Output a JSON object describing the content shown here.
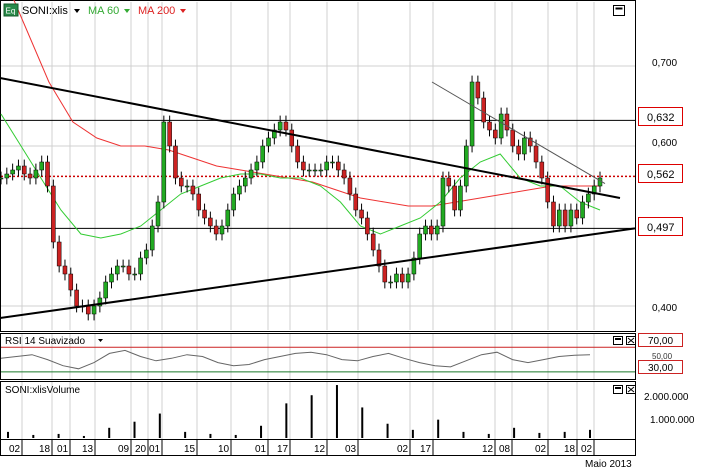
{
  "price_panel": {
    "symbol": "SONI:xlis",
    "symbol_icon": "eq-icon",
    "symbol_icon_text": "Eq",
    "ma60_label": "MA 60",
    "ma200_label": "MA 200",
    "price_ticks": [
      "0,700",
      "0,600",
      "0,400"
    ],
    "level_labels": [
      "0,632",
      "0,562",
      "0,497"
    ]
  },
  "rsi_panel": {
    "label": "RSI 14 Suavizado",
    "ticks": [
      "70,00",
      "50,00",
      "30,00"
    ]
  },
  "volume_panel": {
    "label": "SONI:xlisVolume",
    "ticks": [
      "2.000.000",
      "1.000.000"
    ]
  },
  "x_axis": {
    "ticks": [
      "02",
      "18",
      "01",
      "13",
      "09",
      "20",
      "01",
      "15",
      "10",
      "01",
      "17",
      "12",
      "03",
      "02",
      "17",
      "12",
      "08",
      "02",
      "18",
      "02"
    ],
    "month_label": "Maio 2013"
  },
  "colors": {
    "price_up": "#22aa22",
    "price_down": "#cc2222",
    "ma60": "#33cc33",
    "ma200": "#ee3333",
    "trendline": "#000000",
    "resistance_label": "#dd0000",
    "rsi_band": "#cc2222",
    "volume": "#000000"
  },
  "chart_data": [
    {
      "type": "line",
      "title": "SONI:xlis",
      "series": [
        {
          "name": "SONI:xlis",
          "values": [
            0.56,
            0.565,
            0.57,
            0.575,
            0.565,
            0.56,
            0.57,
            0.58,
            0.55,
            0.48,
            0.45,
            0.44,
            0.42,
            0.4,
            0.4,
            0.39,
            0.4,
            0.41,
            0.43,
            0.44,
            0.45,
            0.45,
            0.44,
            0.44,
            0.46,
            0.47,
            0.5,
            0.53,
            0.63,
            0.6,
            0.56,
            0.55,
            0.55,
            0.54,
            0.52,
            0.51,
            0.5,
            0.49,
            0.5,
            0.52,
            0.54,
            0.55,
            0.56,
            0.57,
            0.58,
            0.6,
            0.61,
            0.62,
            0.63,
            0.62,
            0.6,
            0.58,
            0.57,
            0.57,
            0.57,
            0.57,
            0.58,
            0.58,
            0.57,
            0.56,
            0.54,
            0.52,
            0.51,
            0.49,
            0.47,
            0.45,
            0.43,
            0.43,
            0.44,
            0.43,
            0.44,
            0.46,
            0.49,
            0.5,
            0.49,
            0.5,
            0.56,
            0.55,
            0.52,
            0.55,
            0.6,
            0.68,
            0.66,
            0.63,
            0.62,
            0.61,
            0.64,
            0.62,
            0.6,
            0.59,
            0.61,
            0.6,
            0.58,
            0.56,
            0.53,
            0.5,
            0.52,
            0.5,
            0.52,
            0.51,
            0.53,
            0.54,
            0.55,
            0.56
          ]
        },
        {
          "name": "MA 60",
          "values": [
            0.64,
            0.6,
            0.56,
            0.52,
            0.49,
            0.485,
            0.49,
            0.5,
            0.52,
            0.54,
            0.55,
            0.56,
            0.565,
            0.565,
            0.56,
            0.56,
            0.55,
            0.53,
            0.5,
            0.49,
            0.5,
            0.51,
            0.53,
            0.56,
            0.58,
            0.59,
            0.56,
            0.55,
            0.55,
            0.53,
            0.52
          ]
        },
        {
          "name": "MA 200",
          "values": [
            0.82,
            0.75,
            0.68,
            0.63,
            0.61,
            0.6,
            0.6,
            0.595,
            0.585,
            0.575,
            0.57,
            0.565,
            0.56,
            0.555,
            0.545,
            0.535,
            0.53,
            0.525,
            0.525,
            0.53,
            0.535,
            0.54,
            0.545,
            0.55,
            0.55,
            0.55
          ]
        }
      ],
      "lines": [
        {
          "type": "horizontal",
          "value": 0.632
        },
        {
          "type": "horizontal",
          "value": 0.562
        },
        {
          "type": "horizontal",
          "value": 0.497
        }
      ],
      "yticks": [
        0.7,
        0.6,
        0.4
      ]
    },
    {
      "type": "line",
      "title": "RSI 14 Suavizado",
      "series": [
        {
          "name": "RSI 14 Suavizado",
          "values": [
            52,
            55,
            58,
            50,
            40,
            35,
            45,
            60,
            65,
            55,
            48,
            52,
            58,
            55,
            45,
            40,
            42,
            50,
            55,
            60,
            62,
            58,
            50,
            48,
            55,
            60,
            52,
            45,
            40,
            38,
            48,
            58,
            62,
            50,
            45,
            50,
            55,
            57,
            58
          ]
        }
      ],
      "yticks": [
        70,
        50,
        30
      ]
    },
    {
      "type": "bar",
      "title": "SONI:xlisVolume",
      "series": [
        {
          "name": "SONI:xlisVolume",
          "values": [
            300000,
            150000,
            200000,
            100000,
            500000,
            800000,
            1200000,
            300000,
            200000,
            150000,
            600000,
            1700000,
            2100000,
            2600000,
            1500000,
            700000,
            400000,
            900000,
            300000,
            200000,
            500000,
            250000,
            300000,
            400000
          ]
        }
      ],
      "yticks": [
        2000000,
        1000000
      ]
    }
  ]
}
